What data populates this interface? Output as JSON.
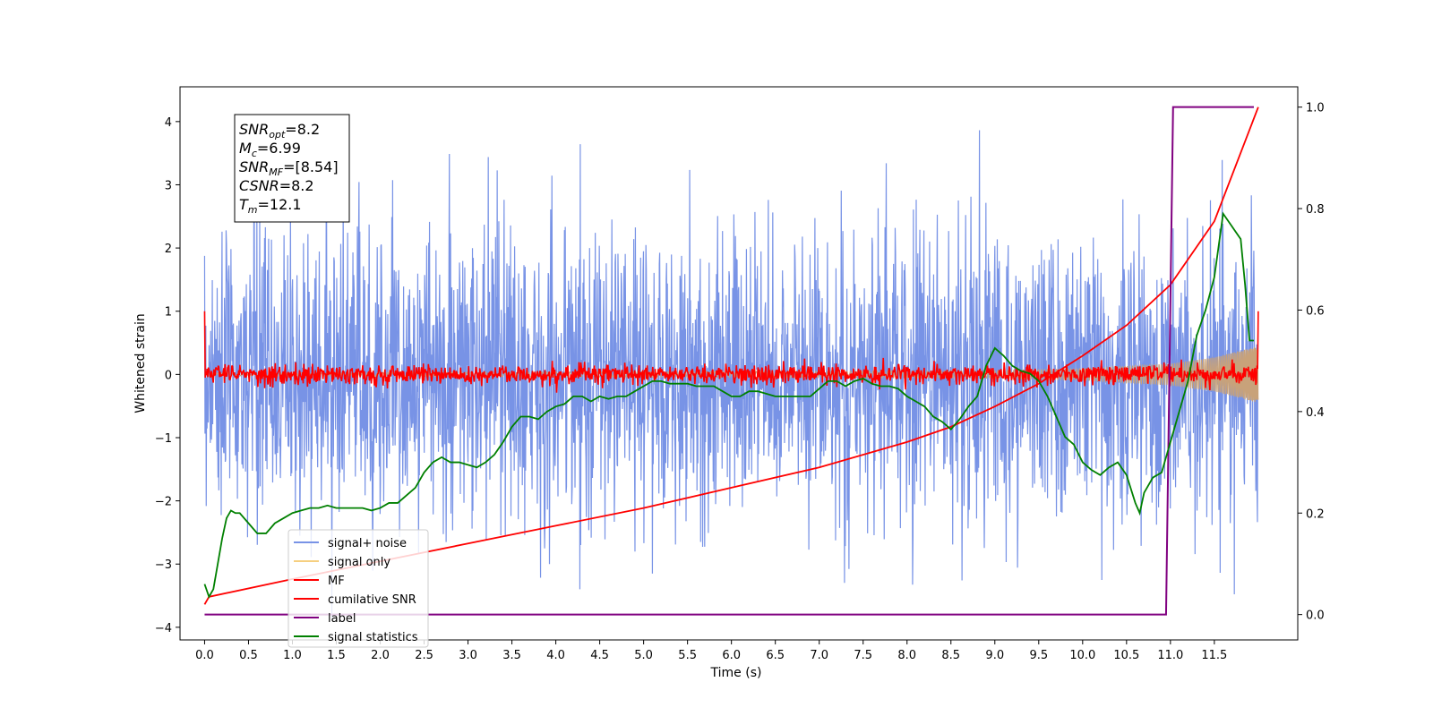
{
  "chart_data": {
    "type": "line",
    "title": "",
    "xlabel": "Time (s)",
    "ylabel": "Whitened strain",
    "y2label": "",
    "xlim": [
      -0.28,
      12.45
    ],
    "ylim": [
      -4.2,
      4.55
    ],
    "y2lim": [
      -0.05,
      1.04
    ],
    "xticks": [
      "0.0",
      "0.5",
      "1.0",
      "1.5",
      "2.0",
      "2.5",
      "3.0",
      "3.5",
      "4.0",
      "4.5",
      "5.0",
      "5.5",
      "6.0",
      "6.5",
      "7.0",
      "7.5",
      "8.0",
      "8.5",
      "9.0",
      "9.5",
      "10.0",
      "10.5",
      "11.0",
      "11.5"
    ],
    "yticks": [
      "−4",
      "−3",
      "−2",
      "−1",
      "0",
      "1",
      "2",
      "3",
      "4"
    ],
    "y2ticks": [
      "0.0",
      "0.2",
      "0.4",
      "0.6",
      "0.8",
      "1.0"
    ],
    "grid": false,
    "legend_position": "lower-left",
    "annotation_lines": [
      {
        "main": "SNR",
        "sub": "opt",
        "rest": "=8.2"
      },
      {
        "main": "M",
        "sub": "c",
        "rest": "=6.99"
      },
      {
        "main": "SNR",
        "sub": "MF",
        "rest": "=[8.54]"
      },
      {
        "main": "CSNR",
        "sub": "",
        "rest": "=8.2"
      },
      {
        "main": "T",
        "sub": "m",
        "rest": "=12.1"
      }
    ],
    "series": [
      {
        "name": "signal+ noise",
        "color": "#7893e6",
        "axis": "left",
        "kind": "noise",
        "x_range": [
          0.0,
          12.0
        ],
        "approx_std": 1.15,
        "approx_range": [
          -3.85,
          4.2
        ]
      },
      {
        "name": "signal only",
        "color": "#c8a27a",
        "legend_color": "#f6cf80",
        "axis": "left",
        "kind": "chirp",
        "x_range": [
          0.0,
          12.0
        ],
        "envelope": [
          [
            0.0,
            0.02
          ],
          [
            9.0,
            0.06
          ],
          [
            10.0,
            0.09
          ],
          [
            11.0,
            0.17
          ],
          [
            11.5,
            0.27
          ],
          [
            12.0,
            0.45
          ]
        ]
      },
      {
        "name": "MF",
        "color": "#ff0000",
        "axis": "left",
        "kind": "mf_noise",
        "x_range": [
          0.0,
          12.0
        ],
        "start_value": 1.0,
        "end_value": 1.0,
        "approx_std": 0.08
      },
      {
        "name": "cumilative SNR",
        "color": "#ff0000",
        "axis": "right",
        "x": [
          0.0,
          0.05,
          1,
          2,
          3,
          4,
          5,
          6,
          7,
          8,
          8.5,
          9,
          9.5,
          10,
          10.5,
          11,
          11.5,
          12.0
        ],
        "values": [
          0.02,
          0.035,
          0.07,
          0.105,
          0.14,
          0.175,
          0.21,
          0.25,
          0.29,
          0.34,
          0.37,
          0.41,
          0.455,
          0.51,
          0.57,
          0.65,
          0.775,
          1.0
        ]
      },
      {
        "name": "label",
        "color": "#800080",
        "axis": "right",
        "x": [
          0.0,
          10.95,
          11.03,
          11.95
        ],
        "values": [
          0.0,
          0.0,
          1.0,
          1.0
        ]
      },
      {
        "name": "signal statistics",
        "color": "#008000",
        "axis": "right",
        "x": [
          0.0,
          0.05,
          0.1,
          0.15,
          0.2,
          0.25,
          0.3,
          0.35,
          0.4,
          0.5,
          0.6,
          0.7,
          0.8,
          0.9,
          1.0,
          1.1,
          1.2,
          1.3,
          1.4,
          1.5,
          1.6,
          1.7,
          1.8,
          1.9,
          2.0,
          2.1,
          2.2,
          2.3,
          2.4,
          2.5,
          2.6,
          2.7,
          2.8,
          2.9,
          3.0,
          3.1,
          3.2,
          3.3,
          3.4,
          3.5,
          3.6,
          3.7,
          3.8,
          3.9,
          4.0,
          4.1,
          4.2,
          4.3,
          4.4,
          4.5,
          4.6,
          4.7,
          4.8,
          4.9,
          5.0,
          5.1,
          5.2,
          5.3,
          5.4,
          5.5,
          5.6,
          5.7,
          5.8,
          5.9,
          6.0,
          6.1,
          6.2,
          6.3,
          6.4,
          6.5,
          6.6,
          6.7,
          6.8,
          6.9,
          7.0,
          7.1,
          7.2,
          7.3,
          7.4,
          7.5,
          7.6,
          7.7,
          7.8,
          7.9,
          8.0,
          8.1,
          8.2,
          8.3,
          8.4,
          8.5,
          8.6,
          8.7,
          8.8,
          8.9,
          9.0,
          9.1,
          9.2,
          9.3,
          9.4,
          9.5,
          9.6,
          9.7,
          9.8,
          9.9,
          10.0,
          10.1,
          10.2,
          10.3,
          10.4,
          10.5,
          10.6,
          10.65,
          10.7,
          10.8,
          10.9,
          11.0,
          11.1,
          11.2,
          11.3,
          11.4,
          11.5,
          11.6,
          11.7,
          11.8,
          11.85,
          11.9,
          11.95
        ],
        "values": [
          0.06,
          0.035,
          0.05,
          0.1,
          0.15,
          0.19,
          0.205,
          0.2,
          0.2,
          0.18,
          0.16,
          0.16,
          0.18,
          0.19,
          0.2,
          0.205,
          0.21,
          0.21,
          0.215,
          0.21,
          0.21,
          0.21,
          0.21,
          0.205,
          0.21,
          0.22,
          0.22,
          0.235,
          0.25,
          0.28,
          0.3,
          0.31,
          0.3,
          0.3,
          0.295,
          0.29,
          0.3,
          0.315,
          0.34,
          0.37,
          0.39,
          0.39,
          0.385,
          0.4,
          0.41,
          0.415,
          0.43,
          0.43,
          0.42,
          0.43,
          0.425,
          0.43,
          0.43,
          0.44,
          0.45,
          0.46,
          0.46,
          0.455,
          0.455,
          0.455,
          0.45,
          0.45,
          0.45,
          0.44,
          0.43,
          0.43,
          0.44,
          0.44,
          0.435,
          0.43,
          0.43,
          0.43,
          0.43,
          0.43,
          0.445,
          0.46,
          0.46,
          0.45,
          0.46,
          0.465,
          0.455,
          0.45,
          0.45,
          0.445,
          0.43,
          0.42,
          0.41,
          0.39,
          0.38,
          0.365,
          0.385,
          0.41,
          0.43,
          0.49,
          0.525,
          0.51,
          0.49,
          0.48,
          0.475,
          0.46,
          0.43,
          0.39,
          0.35,
          0.335,
          0.3,
          0.285,
          0.275,
          0.29,
          0.3,
          0.275,
          0.22,
          0.2,
          0.24,
          0.27,
          0.28,
          0.34,
          0.4,
          0.46,
          0.55,
          0.6,
          0.665,
          0.79,
          0.765,
          0.74,
          0.65,
          0.54,
          0.54
        ]
      }
    ]
  }
}
